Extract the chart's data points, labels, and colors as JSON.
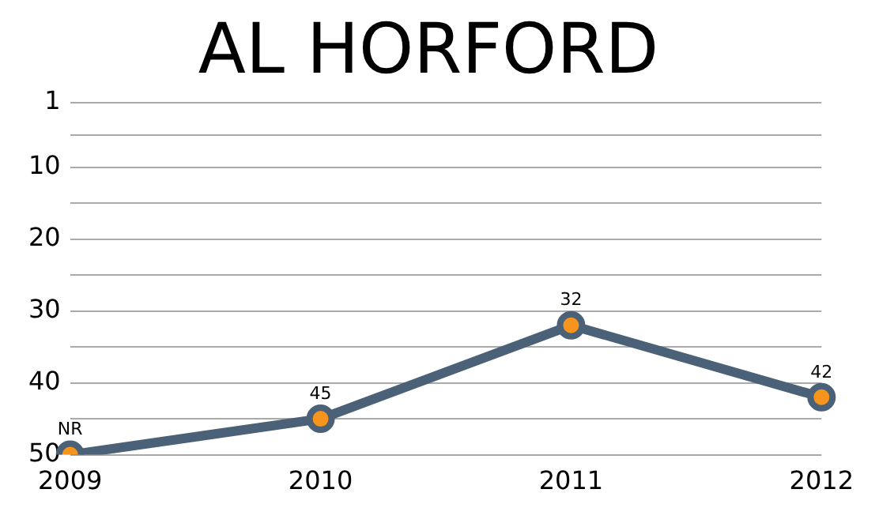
{
  "chart_data": {
    "type": "line",
    "title": "AL HORFORD",
    "categories": [
      "2009",
      "2010",
      "2011",
      "2012"
    ],
    "series": [
      {
        "color": "#4a6178",
        "values": [
          50,
          45,
          32,
          42
        ],
        "value_labels": [
          "NR",
          "45",
          "32",
          "42"
        ]
      }
    ],
    "ylim": [
      50,
      1
    ],
    "yticks": [
      1,
      {
        "value": 5.5,
        "label": null
      },
      10,
      {
        "value": 15,
        "label": null
      },
      20,
      {
        "value": 25,
        "label": null
      },
      30,
      {
        "value": 35,
        "label": null
      },
      40,
      {
        "value": 45,
        "label": null
      },
      50
    ],
    "grid": "y",
    "marker": "circle",
    "line_style": "solid",
    "legend": false
  }
}
